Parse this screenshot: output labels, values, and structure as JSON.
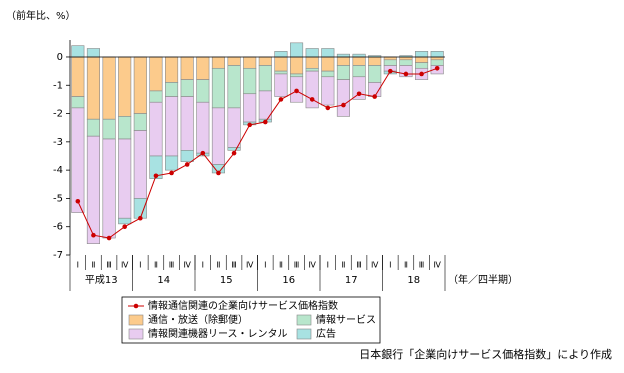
{
  "chart_data": {
    "type": "bar",
    "y_label": "（前年比、%）",
    "x_label": "（年／四半期）",
    "source": "日本銀行「企業向けサービス価格指数」により作成",
    "categories": [
      "Ⅰ",
      "Ⅱ",
      "Ⅲ",
      "Ⅳ",
      "Ⅰ",
      "Ⅱ",
      "Ⅲ",
      "Ⅳ",
      "Ⅰ",
      "Ⅱ",
      "Ⅲ",
      "Ⅳ",
      "Ⅰ",
      "Ⅱ",
      "Ⅲ",
      "Ⅳ",
      "Ⅰ",
      "Ⅱ",
      "Ⅲ",
      "Ⅳ",
      "Ⅰ",
      "Ⅱ",
      "Ⅲ",
      "Ⅳ"
    ],
    "years": [
      "平成13",
      "14",
      "15",
      "16",
      "17",
      "18"
    ],
    "ylim": [
      -7,
      0.6
    ],
    "yticks": [
      0,
      -1,
      -2,
      -3,
      -4,
      -5,
      -6,
      -7
    ],
    "series": [
      {
        "name": "情報通信関連の企業向けサービス価格指数",
        "type": "line",
        "color": "#cc0000",
        "values": [
          -5.1,
          -6.3,
          -6.4,
          -6.0,
          -5.7,
          -4.2,
          -4.1,
          -3.8,
          -3.4,
          -4.1,
          -3.4,
          -2.4,
          -2.3,
          -1.5,
          -1.2,
          -1.5,
          -1.8,
          -1.7,
          -1.3,
          -1.4,
          -0.5,
          -0.6,
          -0.6,
          -0.4
        ]
      },
      {
        "name": "通信・放送（除郵便）",
        "type": "bar",
        "color": "#fccb8c",
        "values": [
          -1.4,
          -2.2,
          -2.2,
          -2.1,
          -2.0,
          -1.2,
          -0.9,
          -0.8,
          -0.8,
          -0.4,
          -0.3,
          -0.4,
          -0.3,
          -0.5,
          -0.6,
          -0.4,
          -0.5,
          -0.3,
          -0.3,
          -0.3,
          -0.1,
          -0.1,
          -0.2,
          -0.1
        ]
      },
      {
        "name": "情報サービス",
        "type": "bar",
        "color": "#b8e6cc",
        "values": [
          -0.4,
          -0.6,
          -0.7,
          -0.8,
          -0.6,
          -0.4,
          -0.5,
          -0.6,
          -0.8,
          -1.4,
          -1.5,
          -0.9,
          -0.9,
          -0.1,
          -0.1,
          -0.1,
          -0.2,
          -0.5,
          -0.4,
          -0.6,
          -0.2,
          -0.2,
          -0.2,
          -0.2
        ]
      },
      {
        "name": "情報関連機器リース・レンタル",
        "type": "bar",
        "color": "#e8ccf0",
        "values": [
          -3.7,
          -3.8,
          -3.5,
          -2.8,
          -2.4,
          -1.9,
          -2.1,
          -1.9,
          -1.8,
          -2.0,
          -1.4,
          -1.0,
          -1.0,
          -0.8,
          -0.9,
          -1.3,
          -1.0,
          -1.3,
          -0.8,
          -0.5,
          -0.2,
          -0.4,
          -0.4,
          -0.3
        ]
      },
      {
        "name": "広告",
        "type": "bar",
        "color": "#a8e2e2",
        "values": [
          0.4,
          0.3,
          0,
          -0.2,
          -0.7,
          -0.8,
          -0.5,
          -0.4,
          -0.1,
          -0.3,
          -0.1,
          -0.1,
          -0.1,
          0.2,
          0.5,
          0.3,
          0.3,
          0.1,
          0.1,
          0.05,
          -0.1,
          0.05,
          0.2,
          0.2
        ]
      }
    ]
  }
}
